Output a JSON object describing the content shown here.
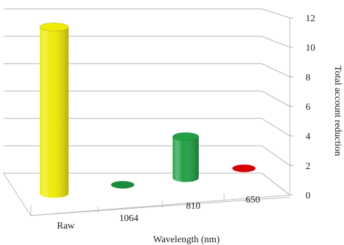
{
  "chart_data": {
    "type": "bar",
    "style": "3d-cylinder",
    "categories": [
      "Raw",
      "1064",
      "810",
      "650"
    ],
    "values": [
      10.5,
      0.05,
      2.6,
      0.05
    ],
    "colors": [
      "#f0ea08",
      "#1a8a3c",
      "#22a045",
      "#d40000"
    ],
    "xlabel": "Wavelength (nm)",
    "ylabel": "Total account reduction",
    "ylim": [
      0,
      12
    ],
    "yticks": [
      0,
      2,
      4,
      6,
      8,
      10,
      12
    ],
    "grid": true,
    "legend": "none"
  }
}
